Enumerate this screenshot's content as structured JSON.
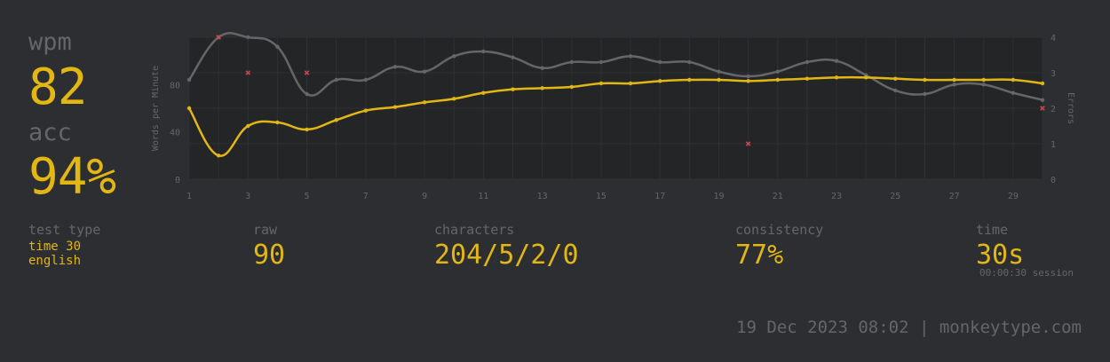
{
  "colors": {
    "background": "#2c2e31",
    "main": "#e2b714",
    "sub": "#646669",
    "error": "#ca4754",
    "plot_area": "#242527"
  },
  "stats": {
    "wpm_label": "wpm",
    "wpm_value": "82",
    "acc_label": "acc",
    "acc_value": "94%"
  },
  "details": {
    "test_type_label": "test type",
    "test_type_mode": "time 30",
    "test_type_language": "english",
    "raw_label": "raw",
    "raw_value": "90",
    "characters_label": "characters",
    "characters_value": "204/5/2/0",
    "consistency_label": "consistency",
    "consistency_value": "77%",
    "time_label": "time",
    "time_value": "30s",
    "time_session": "00:00:30 session"
  },
  "footer": {
    "text": "19 Dec 2023 08:02 | monkeytype.com"
  },
  "chart_data": {
    "type": "line",
    "x": [
      1,
      2,
      3,
      4,
      5,
      6,
      7,
      8,
      9,
      10,
      11,
      12,
      13,
      14,
      15,
      16,
      17,
      18,
      19,
      20,
      21,
      22,
      23,
      24,
      25,
      26,
      27,
      28,
      29,
      30
    ],
    "xticks": [
      1,
      3,
      5,
      7,
      9,
      11,
      13,
      15,
      17,
      19,
      21,
      23,
      25,
      27,
      29
    ],
    "ylabel": "Words per Minute",
    "ylim": [
      0,
      120
    ],
    "yticks": [
      0,
      40,
      80
    ],
    "y2label": "Errors",
    "y2lim": [
      0,
      4
    ],
    "y2ticks": [
      0,
      1,
      2,
      3,
      4
    ],
    "grid": true,
    "series": [
      {
        "name": "raw",
        "values": [
          84,
          120,
          120,
          112,
          72,
          84,
          84,
          95,
          91,
          104,
          108,
          103,
          94,
          99,
          99,
          104,
          99,
          99,
          91,
          87,
          91,
          99,
          100,
          88,
          75,
          72,
          80,
          80,
          73,
          67
        ]
      },
      {
        "name": "wpm",
        "values": [
          60,
          20,
          45,
          48,
          42,
          50,
          58,
          61,
          65,
          68,
          73,
          76,
          77,
          78,
          81,
          81,
          83,
          84,
          84,
          83,
          84,
          85,
          86,
          86,
          85,
          84,
          84,
          84,
          84,
          81
        ]
      },
      {
        "name": "errors",
        "points": [
          [
            2,
            4
          ],
          [
            3,
            3
          ],
          [
            5,
            3
          ],
          [
            20,
            1
          ],
          [
            30,
            2
          ]
        ]
      }
    ]
  }
}
